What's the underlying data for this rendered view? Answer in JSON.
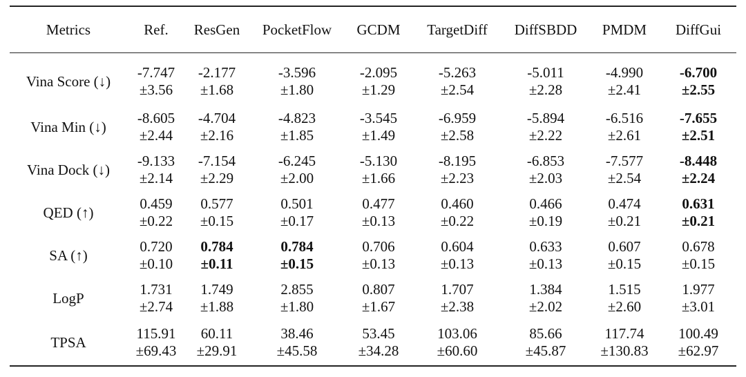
{
  "table": {
    "headers": [
      "Metrics",
      "Ref.",
      "ResGen",
      "PocketFlow",
      "GCDM",
      "TargetDiff",
      "DiffSBDD",
      "PMDM",
      "DiffGui"
    ],
    "rows": [
      {
        "metric": "Vina Score (↓)",
        "cells": [
          {
            "mean": "-7.747",
            "std": "±3.56",
            "bold": false
          },
          {
            "mean": "-2.177",
            "std": "±1.68",
            "bold": false
          },
          {
            "mean": "-3.596",
            "std": "±1.80",
            "bold": false
          },
          {
            "mean": "-2.095",
            "std": "±1.29",
            "bold": false
          },
          {
            "mean": "-5.263",
            "std": "±2.54",
            "bold": false
          },
          {
            "mean": "-5.011",
            "std": "±2.28",
            "bold": false
          },
          {
            "mean": "-4.990",
            "std": "±2.41",
            "bold": false
          },
          {
            "mean": "-6.700",
            "std": "±2.55",
            "bold": true
          }
        ]
      },
      {
        "metric": "Vina Min (↓)",
        "cells": [
          {
            "mean": "-8.605",
            "std": "±2.44",
            "bold": false
          },
          {
            "mean": "-4.704",
            "std": "±2.16",
            "bold": false
          },
          {
            "mean": "-4.823",
            "std": "±1.85",
            "bold": false
          },
          {
            "mean": "-3.545",
            "std": "±1.49",
            "bold": false
          },
          {
            "mean": "-6.959",
            "std": "±2.58",
            "bold": false
          },
          {
            "mean": "-5.894",
            "std": "±2.22",
            "bold": false
          },
          {
            "mean": "-6.516",
            "std": "±2.61",
            "bold": false
          },
          {
            "mean": "-7.655",
            "std": "±2.51",
            "bold": true
          }
        ]
      },
      {
        "metric": "Vina Dock (↓)",
        "cells": [
          {
            "mean": "-9.133",
            "std": "±2.14",
            "bold": false
          },
          {
            "mean": "-7.154",
            "std": "±2.29",
            "bold": false
          },
          {
            "mean": "-6.245",
            "std": "±2.00",
            "bold": false
          },
          {
            "mean": "-5.130",
            "std": "±1.66",
            "bold": false
          },
          {
            "mean": "-8.195",
            "std": "±2.23",
            "bold": false
          },
          {
            "mean": "-6.853",
            "std": "±2.03",
            "bold": false
          },
          {
            "mean": "-7.577",
            "std": "±2.54",
            "bold": false
          },
          {
            "mean": "-8.448",
            "std": "±2.24",
            "bold": true
          }
        ]
      },
      {
        "metric": "QED (↑)",
        "cells": [
          {
            "mean": "0.459",
            "std": "±0.22",
            "bold": false
          },
          {
            "mean": "0.577",
            "std": "±0.15",
            "bold": false
          },
          {
            "mean": "0.501",
            "std": "±0.17",
            "bold": false
          },
          {
            "mean": "0.477",
            "std": "±0.13",
            "bold": false
          },
          {
            "mean": "0.460",
            "std": "±0.22",
            "bold": false
          },
          {
            "mean": "0.466",
            "std": "±0.19",
            "bold": false
          },
          {
            "mean": "0.474",
            "std": "±0.21",
            "bold": false
          },
          {
            "mean": "0.631",
            "std": "±0.21",
            "bold": true
          }
        ]
      },
      {
        "metric": "SA (↑)",
        "cells": [
          {
            "mean": "0.720",
            "std": "±0.10",
            "bold": false
          },
          {
            "mean": "0.784",
            "std": "±0.11",
            "bold": true
          },
          {
            "mean": "0.784",
            "std": "±0.15",
            "bold": true
          },
          {
            "mean": "0.706",
            "std": "±0.13",
            "bold": false
          },
          {
            "mean": "0.604",
            "std": "±0.13",
            "bold": false
          },
          {
            "mean": "0.633",
            "std": "±0.13",
            "bold": false
          },
          {
            "mean": "0.607",
            "std": "±0.15",
            "bold": false
          },
          {
            "mean": "0.678",
            "std": "±0.15",
            "bold": false
          }
        ]
      },
      {
        "metric": "LogP",
        "cells": [
          {
            "mean": "1.731",
            "std": "±2.74",
            "bold": false
          },
          {
            "mean": "1.749",
            "std": "±1.88",
            "bold": false
          },
          {
            "mean": "2.855",
            "std": "±1.80",
            "bold": false
          },
          {
            "mean": "0.807",
            "std": "±1.67",
            "bold": false
          },
          {
            "mean": "1.707",
            "std": "±2.38",
            "bold": false
          },
          {
            "mean": "1.384",
            "std": "±2.02",
            "bold": false
          },
          {
            "mean": "1.515",
            "std": "±2.60",
            "bold": false
          },
          {
            "mean": "1.977",
            "std": "±3.01",
            "bold": false
          }
        ]
      },
      {
        "metric": "TPSA",
        "cells": [
          {
            "mean": "115.91",
            "std": "±69.43",
            "bold": false
          },
          {
            "mean": "60.11",
            "std": "±29.91",
            "bold": false
          },
          {
            "mean": "38.46",
            "std": "±45.58",
            "bold": false
          },
          {
            "mean": "53.45",
            "std": "±34.28",
            "bold": false
          },
          {
            "mean": "103.06",
            "std": "±60.60",
            "bold": false
          },
          {
            "mean": "85.66",
            "std": "±45.87",
            "bold": false
          },
          {
            "mean": "117.74",
            "std": "±130.83",
            "bold": false
          },
          {
            "mean": "100.49",
            "std": "±62.97",
            "bold": false
          }
        ]
      }
    ]
  }
}
